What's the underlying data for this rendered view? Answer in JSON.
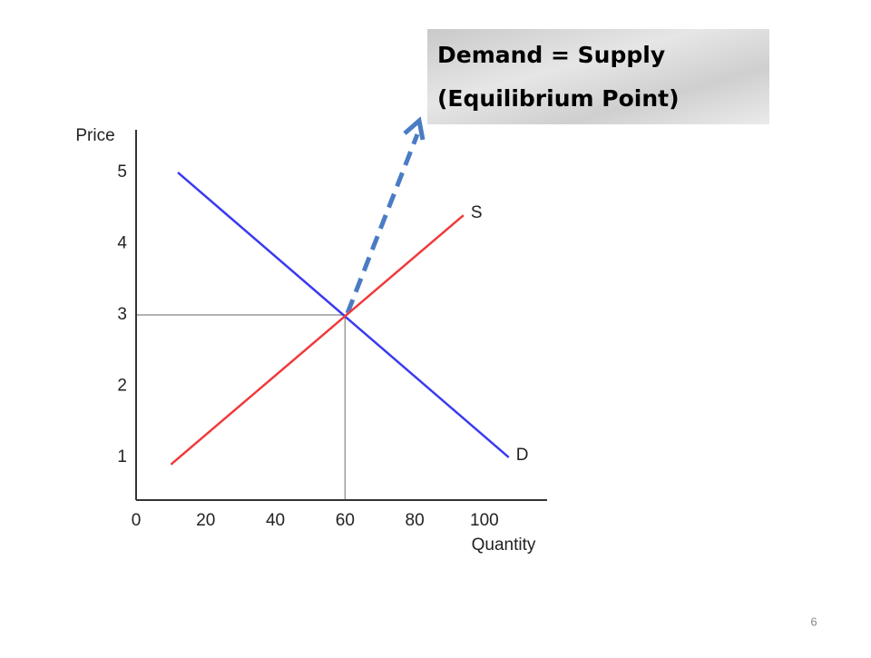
{
  "chart_data": {
    "type": "line",
    "xlabel": "Quantity",
    "ylabel": "Price",
    "xlim": [
      0,
      118
    ],
    "ylim": [
      0.4,
      5.6
    ],
    "xticks": [
      0,
      20,
      40,
      60,
      80,
      100
    ],
    "yticks": [
      1,
      2,
      3,
      4,
      5
    ],
    "series": [
      {
        "name": "D",
        "color": "#3a3af0",
        "x": [
          12,
          107
        ],
        "values": [
          5,
          1
        ]
      },
      {
        "name": "S",
        "color": "#f03a3a",
        "x": [
          10,
          94
        ],
        "values": [
          0.9,
          4.4
        ]
      }
    ],
    "equilibrium": {
      "x": 60,
      "y": 3,
      "color": "#999999"
    },
    "annotation": [
      "Demand = Supply",
      "(Equilibrium Point)"
    ]
  },
  "slide_number": "6"
}
